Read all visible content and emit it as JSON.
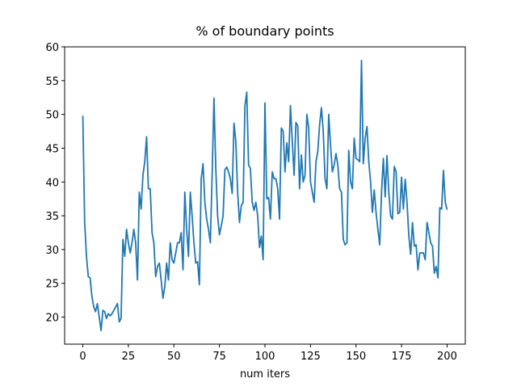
{
  "chart_data": {
    "type": "line",
    "title": "% of boundary points",
    "xlabel": "num iters",
    "x": [
      0,
      1,
      2,
      3,
      4,
      5,
      6,
      7,
      8,
      9,
      10,
      11,
      12,
      13,
      14,
      15,
      16,
      17,
      18,
      19,
      20,
      21,
      22,
      23,
      24,
      25,
      26,
      27,
      28,
      29,
      30,
      31,
      32,
      33,
      34,
      35,
      36,
      37,
      38,
      39,
      40,
      41,
      42,
      43,
      44,
      45,
      46,
      47,
      48,
      49,
      50,
      51,
      52,
      53,
      54,
      55,
      56,
      57,
      58,
      59,
      60,
      61,
      62,
      63,
      64,
      65,
      66,
      67,
      68,
      69,
      70,
      71,
      72,
      73,
      74,
      75,
      76,
      77,
      78,
      79,
      80,
      81,
      82,
      83,
      84,
      85,
      86,
      87,
      88,
      89,
      90,
      91,
      92,
      93,
      94,
      95,
      96,
      97,
      98,
      99,
      100,
      101,
      102,
      103,
      104,
      105,
      106,
      107,
      108,
      109,
      110,
      111,
      112,
      113,
      114,
      115,
      116,
      117,
      118,
      119,
      120,
      121,
      122,
      123,
      124,
      125,
      126,
      127,
      128,
      129,
      130,
      131,
      132,
      133,
      134,
      135,
      136,
      137,
      138,
      139,
      140,
      141,
      142,
      143,
      144,
      145,
      146,
      147,
      148,
      149,
      150,
      151,
      152,
      153,
      154,
      155,
      156,
      157,
      158,
      159,
      160,
      161,
      162,
      163,
      164,
      165,
      166,
      167,
      168,
      169,
      170,
      171,
      172,
      173,
      174,
      175,
      176,
      177,
      178,
      179,
      180,
      181,
      182,
      183,
      184,
      185,
      186,
      187,
      188,
      189,
      190,
      191,
      192,
      193,
      194,
      195,
      196,
      197,
      198,
      199,
      200
    ],
    "series": [
      {
        "color": "#1f77b4",
        "values": [
          49.8,
          34,
          29,
          26,
          25.8,
          23,
          21.5,
          20.8,
          22,
          20,
          18,
          21,
          20.8,
          19.8,
          20.5,
          20.2,
          20.5,
          21,
          21.5,
          22,
          19.3,
          19.8,
          31.5,
          29,
          33,
          31,
          29.5,
          31,
          33,
          31,
          25.5,
          38.5,
          36,
          41,
          43,
          46.7,
          39,
          39,
          32.5,
          31,
          26,
          27.5,
          28,
          25.5,
          22.8,
          24.5,
          28,
          25.5,
          31,
          28.5,
          28,
          29.5,
          31,
          31,
          32.5,
          27,
          38.5,
          33,
          29,
          38.5,
          35,
          31,
          28,
          28.2,
          24.8,
          40.5,
          42.7,
          37,
          34.5,
          33,
          31,
          41,
          52.4,
          42,
          35,
          32.2,
          33.5,
          35,
          41.8,
          42.2,
          41.5,
          40.5,
          38.3,
          48.7,
          46,
          38.5,
          34,
          36.5,
          37,
          51.3,
          53.3,
          42.5,
          42,
          37,
          35.8,
          37,
          35,
          30.3,
          32,
          28.5,
          51.7,
          37.5,
          37.7,
          34.5,
          41.5,
          40.5,
          40.5,
          39,
          34.5,
          48,
          47.5,
          41.5,
          45.8,
          43,
          51.3,
          46,
          41,
          48.8,
          48.3,
          39,
          44,
          40,
          41,
          50,
          48,
          40,
          38.5,
          37,
          43,
          44.5,
          48.5,
          51,
          47.5,
          40.5,
          39,
          50,
          45.5,
          41.5,
          42.5,
          44.2,
          42.5,
          39,
          38.5,
          31.5,
          30.7,
          31,
          44.7,
          40,
          39,
          46.5,
          43.5,
          43.3,
          43,
          58,
          42.7,
          46.5,
          48.2,
          43,
          40,
          35.5,
          38.8,
          35.5,
          33,
          30.7,
          38.5,
          43.5,
          37.8,
          43.9,
          38.5,
          35,
          34.5,
          42.3,
          41.5,
          35.3,
          35.5,
          40.7,
          36,
          40.4,
          37,
          32,
          29.3,
          34,
          30.5,
          30.7,
          27,
          29.5,
          29.5,
          29.5,
          28.5,
          34,
          32.5,
          31,
          30.5,
          26.5,
          27.5,
          25.8,
          36.2,
          36,
          41.7,
          37,
          35.9
        ]
      }
    ],
    "xlim": [
      -10,
      210
    ],
    "xticks": [
      0,
      25,
      50,
      75,
      100,
      125,
      150,
      175,
      200
    ],
    "ylim": [
      16,
      60
    ],
    "yticks": [
      20,
      25,
      30,
      35,
      40,
      45,
      50,
      55,
      60
    ]
  }
}
